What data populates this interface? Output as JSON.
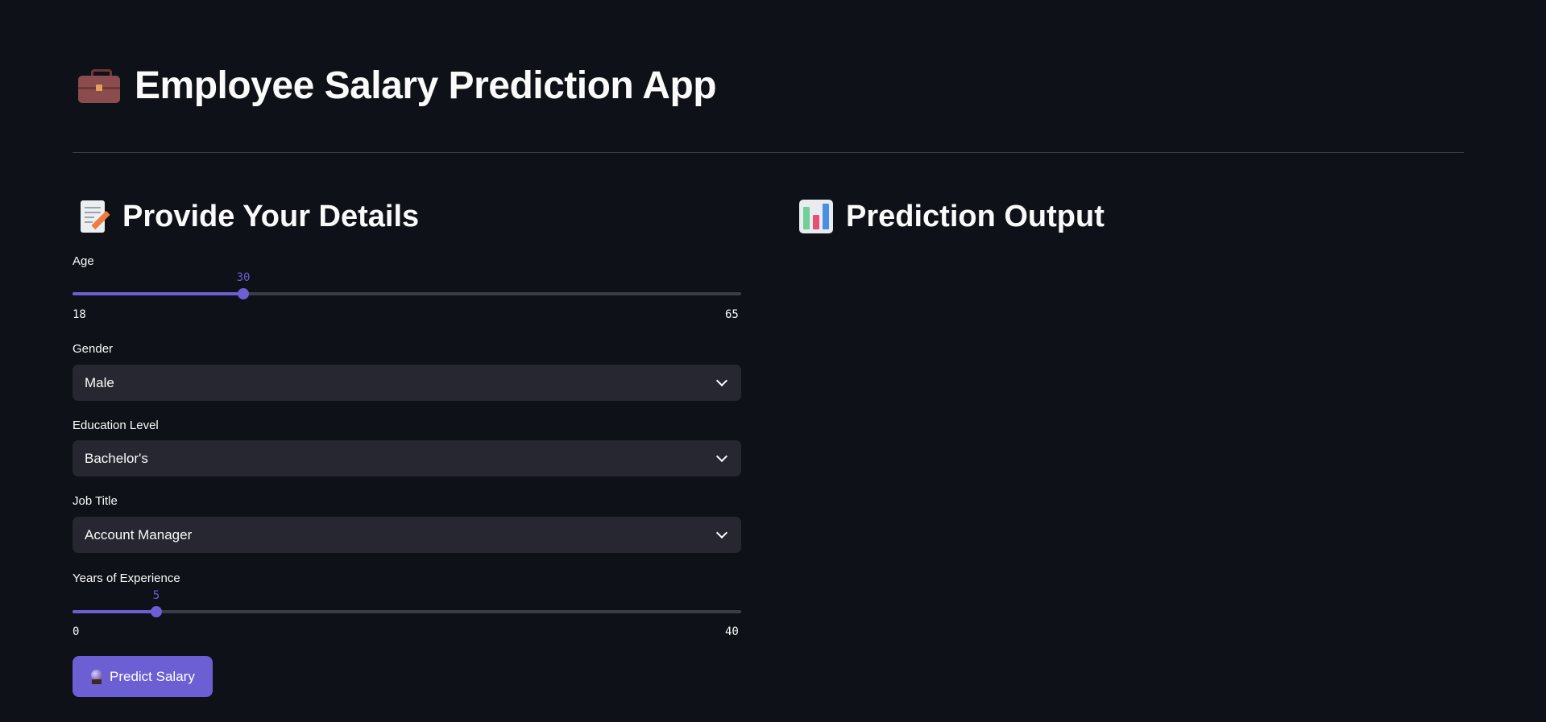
{
  "app": {
    "title": "Employee Salary Prediction App",
    "title_icon": "briefcase-icon"
  },
  "left_section": {
    "title": "Provide Your Details",
    "icon": "memo-icon"
  },
  "right_section": {
    "title": "Prediction Output",
    "icon": "bar-chart-icon"
  },
  "form": {
    "age": {
      "label": "Age",
      "value": 30,
      "min": 18,
      "max": 65
    },
    "gender": {
      "label": "Gender",
      "value": "Male"
    },
    "education": {
      "label": "Education Level",
      "value": "Bachelor's"
    },
    "job_title": {
      "label": "Job Title",
      "value": "Account Manager"
    },
    "experience": {
      "label": "Years of Experience",
      "value": 5,
      "min": 0,
      "max": 40
    },
    "predict_button": {
      "label": "Predict Salary",
      "icon": "crystal-ball-icon"
    }
  },
  "colors": {
    "background": "#0e1117",
    "accent": "#6c5fd3",
    "input_bg": "#262730",
    "text": "#fafafa"
  }
}
